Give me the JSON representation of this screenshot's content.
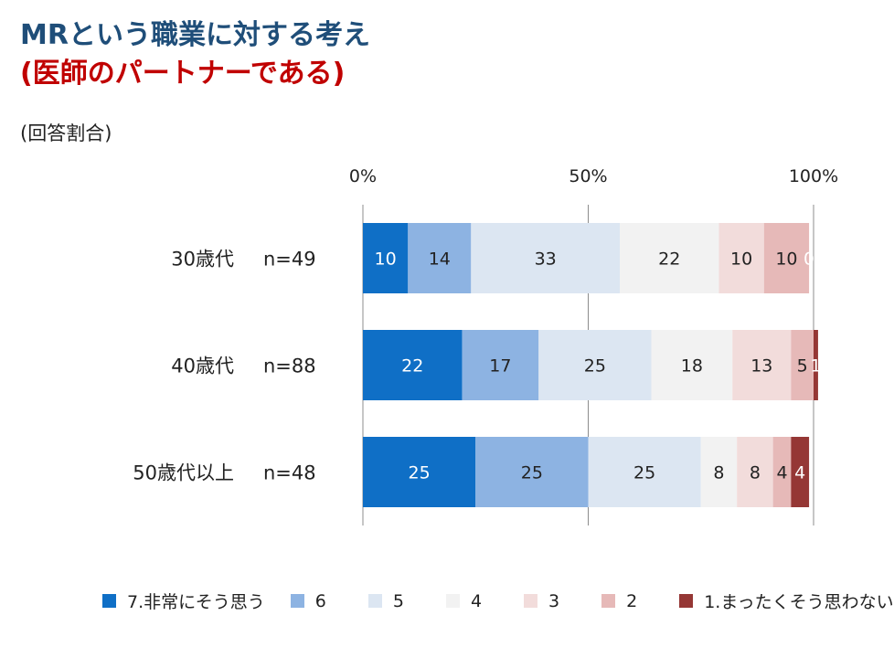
{
  "title": {
    "line1": "MRという職業に対する考え",
    "line2": "(医師のパートナーである)"
  },
  "note": "(回答割合)",
  "chart_data": {
    "type": "bar",
    "orientation": "horizontal",
    "stacked": true,
    "percent": true,
    "xlim": [
      0,
      100
    ],
    "x_ticks": [
      "0%",
      "50%",
      "100%"
    ],
    "x_tick_position": "top",
    "categories": [
      "30歳代",
      "40歳代",
      "50歳代以上"
    ],
    "sample_sizes": [
      "n=49",
      "n=88",
      "n=48"
    ],
    "legend_position": "bottom",
    "series": [
      {
        "name": "7.非常にそう思う",
        "color": "#0f6fc6",
        "label_color": "#ffffff",
        "values": [
          10,
          22,
          25
        ]
      },
      {
        "name": "6",
        "color": "#8db3e2",
        "label_color": "#222222",
        "values": [
          14,
          17,
          25
        ]
      },
      {
        "name": "5",
        "color": "#dce6f2",
        "label_color": "#222222",
        "values": [
          33,
          25,
          25
        ]
      },
      {
        "name": "4",
        "color": "#f2f2f2",
        "label_color": "#222222",
        "values": [
          22,
          18,
          8
        ]
      },
      {
        "name": "3",
        "color": "#f2dcdb",
        "label_color": "#222222",
        "values": [
          10,
          13,
          8
        ]
      },
      {
        "name": "2",
        "color": "#e6b9b8",
        "label_color": "#222222",
        "values": [
          10,
          5,
          4
        ]
      },
      {
        "name": "1.まったくそう思わない",
        "color": "#953735",
        "label_color": "#ffffff",
        "values": [
          0,
          1,
          4
        ]
      }
    ]
  }
}
